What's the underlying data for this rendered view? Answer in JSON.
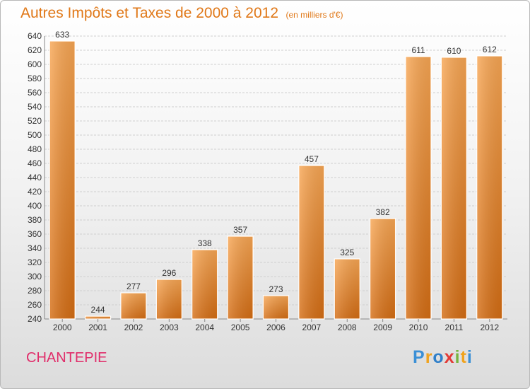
{
  "chart_data": {
    "type": "bar",
    "title": "Autres Impôts et Taxes de 2000 à 2012",
    "subtitle": "(en milliers d'€)",
    "categories": [
      "2000",
      "2001",
      "2002",
      "2003",
      "2004",
      "2005",
      "2006",
      "2007",
      "2008",
      "2009",
      "2010",
      "2011",
      "2012"
    ],
    "values": [
      633,
      244,
      277,
      296,
      338,
      357,
      273,
      457,
      325,
      382,
      611,
      610,
      612
    ],
    "ylim": [
      240,
      640
    ],
    "ytick_step": 20,
    "grid": true,
    "xlabel": "",
    "ylabel": "",
    "bar_color": "#f08c2a"
  },
  "commune": "CHANTEPIE",
  "logo": {
    "text": "Proxiti",
    "letters": [
      "P",
      "r",
      "o",
      "x",
      "i",
      "t",
      "i"
    ]
  },
  "colors": {
    "title": "#e07818",
    "commune": "#e02d6a"
  }
}
